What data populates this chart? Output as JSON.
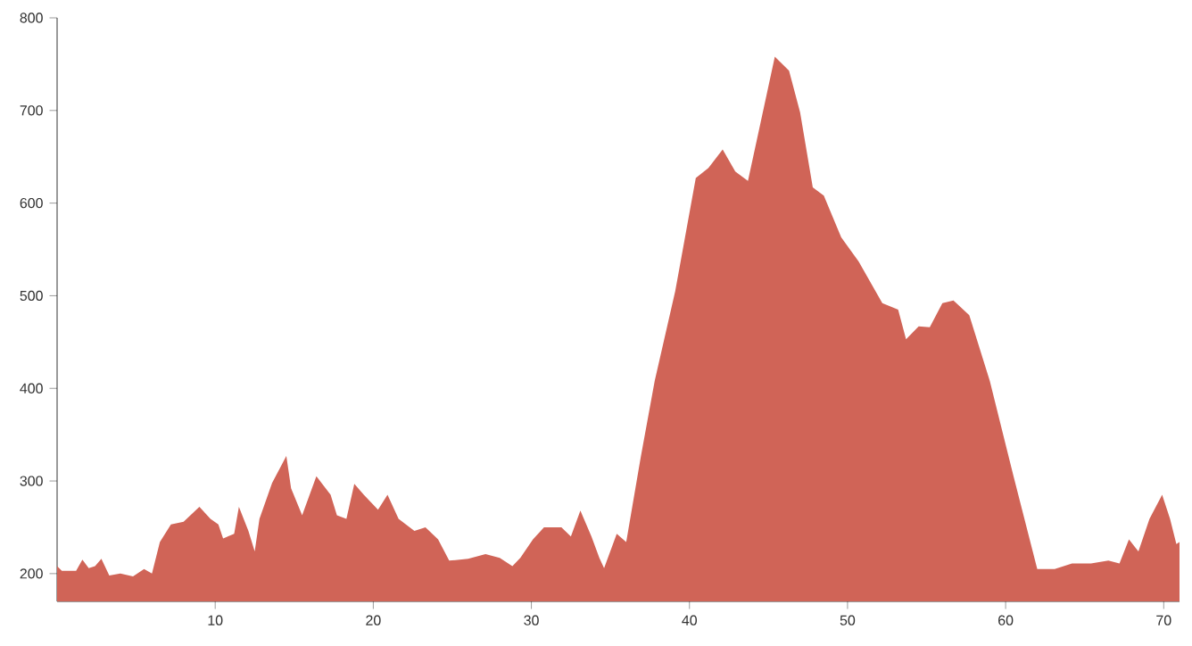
{
  "chart_data": {
    "type": "area",
    "color": "#d06457",
    "xlim": [
      0,
      71
    ],
    "ylim": [
      170,
      800
    ],
    "xticks": [
      10,
      20,
      30,
      40,
      50,
      60,
      70
    ],
    "yticks": [
      200,
      300,
      400,
      500,
      600,
      700,
      800
    ],
    "grid": false,
    "x": [
      0,
      0.3,
      1.2,
      1.6,
      2.0,
      2.4,
      2.8,
      3.3,
      4.0,
      4.8,
      5.5,
      6.0,
      6.5,
      7.2,
      8.0,
      9.0,
      9.7,
      10.2,
      10.5,
      11.2,
      11.5,
      12.1,
      12.5,
      12.8,
      13.6,
      14.1,
      14.5,
      14.8,
      15.5,
      16.4,
      17.3,
      17.7,
      18.3,
      18.8,
      19.4,
      20.3,
      20.9,
      21.6,
      22.6,
      23.3,
      24.1,
      24.8,
      26.0,
      27.1,
      28.0,
      28.8,
      29.3,
      30.1,
      30.8,
      31.9,
      32.5,
      33.1,
      33.8,
      34.3,
      34.6,
      35.4,
      36.0,
      36.9,
      37.8,
      39.1,
      40.4,
      41.2,
      42.1,
      42.9,
      43.7,
      44.4,
      45.4,
      46.3,
      47.0,
      47.8,
      48.5,
      49.6,
      50.7,
      52.2,
      53.2,
      53.7,
      54.5,
      55.2,
      56.0,
      56.7,
      57.7,
      59.0,
      60.5,
      62.0,
      63.1,
      64.2,
      65.4,
      66.5,
      67.2,
      67.8,
      68.4,
      69.1,
      69.9,
      70.4,
      70.8,
      71.0
    ],
    "values": [
      208,
      203,
      203,
      215,
      206,
      208,
      216,
      198,
      200,
      197,
      205,
      200,
      234,
      253,
      256,
      272,
      259,
      253,
      238,
      243,
      272,
      246,
      224,
      259,
      298,
      314,
      327,
      292,
      263,
      305,
      285,
      263,
      259,
      297,
      285,
      269,
      285,
      259,
      246,
      250,
      237,
      214,
      216,
      221,
      217,
      208,
      217,
      237,
      250,
      250,
      240,
      268,
      240,
      217,
      206,
      243,
      234,
      324,
      408,
      505,
      627,
      638,
      658,
      634,
      624,
      679,
      758,
      743,
      698,
      617,
      608,
      563,
      537,
      492,
      485,
      453,
      467,
      466,
      492,
      495,
      479,
      408,
      305,
      205,
      205,
      211,
      211,
      214,
      211,
      237,
      224,
      259,
      285,
      259,
      232,
      234
    ]
  }
}
